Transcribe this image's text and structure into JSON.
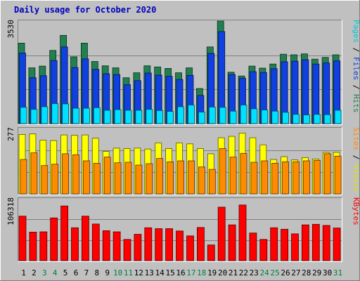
{
  "chart_data": {
    "type": "bar",
    "title": "Daily usage for October 2020",
    "categories": [
      "1",
      "2",
      "3",
      "4",
      "5",
      "6",
      "7",
      "8",
      "9",
      "10",
      "11",
      "12",
      "13",
      "14",
      "15",
      "16",
      "17",
      "18",
      "19",
      "20",
      "21",
      "22",
      "23",
      "24",
      "25",
      "26",
      "27",
      "28",
      "29",
      "30",
      "31"
    ],
    "weekend_days": [
      "3",
      "4",
      "10",
      "11",
      "17",
      "18",
      "24",
      "25",
      "31"
    ],
    "colors": {
      "weekday_label": "#000000",
      "weekend_label": "#008040",
      "hits": "#208050",
      "files": "#1040e0",
      "pages": "#00e0ff",
      "visits": "#ffff00",
      "sites": "#ff8c00",
      "kbytes": "#ff0000",
      "title": "#0000c0"
    },
    "panels": [
      {
        "id": "hits-files-pages",
        "ymax_label": "3530",
        "ymax": 3530,
        "legend": [
          {
            "text": "Pages",
            "color": "#00c8d8"
          },
          {
            "text": " / ",
            "color": "#000000"
          },
          {
            "text": "Files",
            "color": "#1040e0"
          },
          {
            "text": " / ",
            "color": "#000000"
          },
          {
            "text": "Hits",
            "color": "#208050"
          }
        ],
        "series": [
          {
            "name": "Hits",
            "color": "#208050",
            "values": [
              2770,
              1920,
              1980,
              2520,
              3040,
              2300,
              2770,
              2140,
              1990,
              1920,
              1580,
              1750,
              1990,
              1950,
              1900,
              1750,
              1920,
              1210,
              2640,
              3530,
              1770,
              1640,
              1980,
              1910,
              2050,
              2390,
              2370,
              2400,
              2220,
              2280,
              2370
            ]
          },
          {
            "name": "Files",
            "color": "#1040e0",
            "values": [
              2430,
              1580,
              1650,
              2170,
              2640,
              1930,
              2230,
              1870,
              1720,
              1690,
              1340,
              1480,
              1740,
              1670,
              1630,
              1520,
              1660,
              970,
              2420,
              3170,
              1690,
              1560,
              1790,
              1760,
              1890,
              2130,
              2150,
              2200,
              2050,
              2090,
              2160
            ]
          },
          {
            "name": "Pages",
            "color": "#00e0ff",
            "values": [
              560,
              490,
              580,
              690,
              680,
              530,
              530,
              550,
              460,
              480,
              460,
              460,
              490,
              450,
              420,
              580,
              640,
              400,
              570,
              560,
              430,
              640,
              510,
              470,
              430,
              390,
              320,
              300,
              320,
              310,
              460
            ]
          }
        ]
      },
      {
        "id": "visits-sites",
        "ymax_label": "277",
        "ymax": 277,
        "legend": [
          {
            "text": "Sites",
            "color": "#ff8c00"
          },
          {
            "text": " / ",
            "color": "#000000"
          },
          {
            "text": "Visits",
            "color": "#e0e000"
          }
        ],
        "series": [
          {
            "name": "Visits",
            "color": "#ffff00",
            "values": [
              252,
              254,
              228,
              226,
              250,
              248,
              250,
              236,
              180,
              194,
              192,
              194,
              190,
              216,
              192,
              216,
              212,
              192,
              170,
              238,
              244,
              258,
              238,
              208,
              146,
              158,
              144,
              154,
              148,
              176,
              176
            ]
          },
          {
            "name": "Sites",
            "color": "#ff8c00",
            "values": [
              146,
              174,
              120,
              126,
              170,
              166,
              140,
              130,
              156,
              132,
              134,
              122,
              128,
              150,
              136,
              140,
              140,
              114,
              104,
              192,
              156,
              172,
              134,
              140,
              130,
              136,
              136,
              140,
              142,
              170,
              160
            ]
          }
        ]
      },
      {
        "id": "kbytes",
        "ymax_label": "106318",
        "ymax": 106318,
        "legend": [
          {
            "text": "KBytes",
            "color": "#ff0000"
          }
        ],
        "series": [
          {
            "name": "KBytes",
            "color": "#ff0000",
            "values": [
              76500,
              49000,
              49500,
              73500,
              94000,
              56500,
              76500,
              63000,
              51500,
              49500,
              36500,
              45300,
              56500,
              55000,
              55000,
              51000,
              42500,
              57000,
              27000,
              92000,
              61500,
              95700,
              47500,
              36500,
              56500,
              54000,
              46000,
              61500,
              62500,
              60500,
              56000
            ]
          }
        ]
      }
    ]
  }
}
